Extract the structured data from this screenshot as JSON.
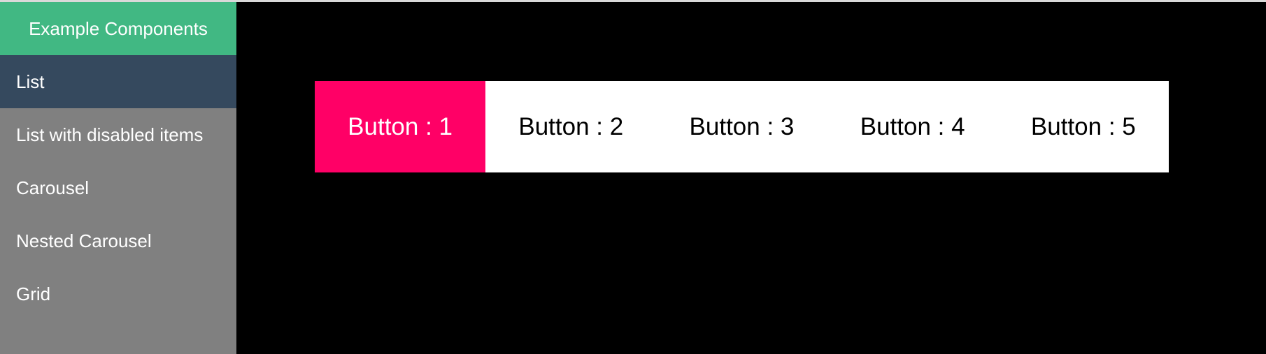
{
  "sidebar": {
    "header": "Example Components",
    "items": [
      {
        "label": "List",
        "active": true
      },
      {
        "label": "List with disabled items",
        "active": false
      },
      {
        "label": "Carousel",
        "active": false
      },
      {
        "label": "Nested Carousel",
        "active": false
      },
      {
        "label": "Grid",
        "active": false
      }
    ]
  },
  "main": {
    "buttons": [
      {
        "label": "Button : 1",
        "focused": true
      },
      {
        "label": "Button : 2",
        "focused": false
      },
      {
        "label": "Button : 3",
        "focused": false
      },
      {
        "label": "Button : 4",
        "focused": false
      },
      {
        "label": "Button : 5",
        "focused": false
      }
    ]
  },
  "colors": {
    "header_green": "#41b883",
    "active_item": "#35495e",
    "sidebar_bg": "#808080",
    "focused_button": "#ff0066",
    "main_bg": "#000000"
  }
}
